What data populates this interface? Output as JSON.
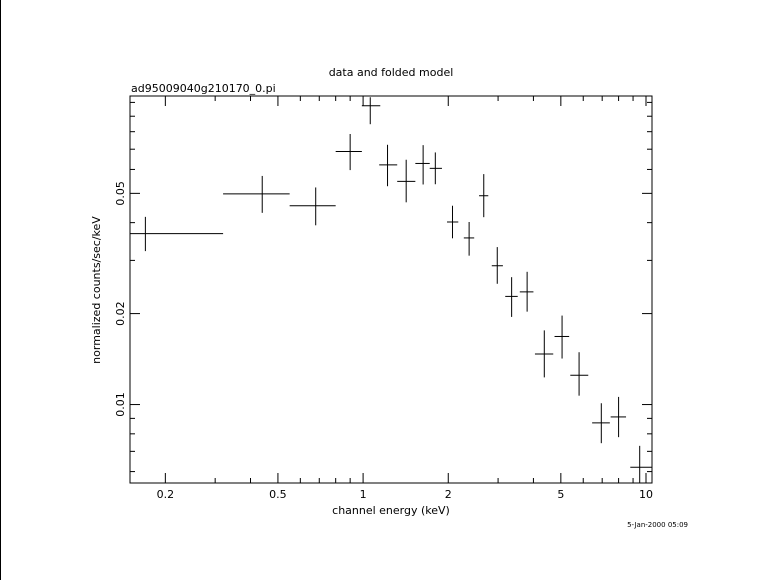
{
  "chart_data": {
    "type": "scatter",
    "title": "data and folded model",
    "subtitle": "ad95009040g210170_0.pi",
    "xlabel": "channel energy (keV)",
    "ylabel": "normalized counts/sec/keV",
    "timestamp": "5-Jan-2000 05:09",
    "x_scale": "log",
    "y_scale": "log",
    "xlim": [
      0.15,
      10.5
    ],
    "ylim": [
      0.0055,
      0.105
    ],
    "x_ticks": [
      {
        "value": 0.2,
        "label": "0.2"
      },
      {
        "value": 0.5,
        "label": "0.5"
      },
      {
        "value": 1,
        "label": "1"
      },
      {
        "value": 2,
        "label": "2"
      },
      {
        "value": 5,
        "label": "5"
      },
      {
        "value": 10,
        "label": "10"
      }
    ],
    "y_ticks": [
      {
        "value": 0.01,
        "label": "0.01"
      },
      {
        "value": 0.02,
        "label": "0.02"
      },
      {
        "value": 0.05,
        "label": "0.05"
      }
    ],
    "points": [
      {
        "x": 0.17,
        "x_lo": 0.15,
        "x_hi": 0.32,
        "y": 0.0368,
        "y_lo": 0.0322,
        "y_hi": 0.0418
      },
      {
        "x": 0.44,
        "x_lo": 0.32,
        "x_hi": 0.55,
        "y": 0.0498,
        "y_lo": 0.0431,
        "y_hi": 0.0571
      },
      {
        "x": 0.68,
        "x_lo": 0.55,
        "x_hi": 0.8,
        "y": 0.0455,
        "y_lo": 0.0392,
        "y_hi": 0.0523
      },
      {
        "x": 0.9,
        "x_lo": 0.8,
        "x_hi": 0.99,
        "y": 0.0688,
        "y_lo": 0.0597,
        "y_hi": 0.0786
      },
      {
        "x": 1.06,
        "x_lo": 0.99,
        "x_hi": 1.15,
        "y": 0.0975,
        "y_lo": 0.0847,
        "y_hi": 0.104
      },
      {
        "x": 1.22,
        "x_lo": 1.14,
        "x_hi": 1.32,
        "y": 0.0621,
        "y_lo": 0.0528,
        "y_hi": 0.0724
      },
      {
        "x": 1.42,
        "x_lo": 1.32,
        "x_hi": 1.53,
        "y": 0.0548,
        "y_lo": 0.0467,
        "y_hi": 0.0646
      },
      {
        "x": 1.63,
        "x_lo": 1.53,
        "x_hi": 1.72,
        "y": 0.0628,
        "y_lo": 0.0535,
        "y_hi": 0.0722
      },
      {
        "x": 1.8,
        "x_lo": 1.72,
        "x_hi": 1.9,
        "y": 0.0605,
        "y_lo": 0.0536,
        "y_hi": 0.0683
      },
      {
        "x": 2.07,
        "x_lo": 1.98,
        "x_hi": 2.17,
        "y": 0.0402,
        "y_lo": 0.0355,
        "y_hi": 0.0455
      },
      {
        "x": 2.37,
        "x_lo": 2.27,
        "x_hi": 2.47,
        "y": 0.0356,
        "y_lo": 0.0311,
        "y_hi": 0.0402
      },
      {
        "x": 2.67,
        "x_lo": 2.57,
        "x_hi": 2.77,
        "y": 0.0491,
        "y_lo": 0.0417,
        "y_hi": 0.0579
      },
      {
        "x": 2.98,
        "x_lo": 2.85,
        "x_hi": 3.12,
        "y": 0.0288,
        "y_lo": 0.0251,
        "y_hi": 0.0332
      },
      {
        "x": 3.35,
        "x_lo": 3.18,
        "x_hi": 3.52,
        "y": 0.0228,
        "y_lo": 0.0195,
        "y_hi": 0.0264
      },
      {
        "x": 3.8,
        "x_lo": 3.58,
        "x_hi": 4.0,
        "y": 0.0236,
        "y_lo": 0.0203,
        "y_hi": 0.0275
      },
      {
        "x": 4.37,
        "x_lo": 4.05,
        "x_hi": 4.7,
        "y": 0.0147,
        "y_lo": 0.0123,
        "y_hi": 0.0176
      },
      {
        "x": 5.05,
        "x_lo": 4.75,
        "x_hi": 5.35,
        "y": 0.0168,
        "y_lo": 0.0142,
        "y_hi": 0.0197
      },
      {
        "x": 5.8,
        "x_lo": 5.4,
        "x_hi": 6.25,
        "y": 0.0125,
        "y_lo": 0.0107,
        "y_hi": 0.0149
      },
      {
        "x": 6.95,
        "x_lo": 6.45,
        "x_hi": 7.45,
        "y": 0.0087,
        "y_lo": 0.00745,
        "y_hi": 0.0101
      },
      {
        "x": 8.0,
        "x_lo": 7.5,
        "x_hi": 8.5,
        "y": 0.0091,
        "y_lo": 0.0078,
        "y_hi": 0.0106
      },
      {
        "x": 9.5,
        "x_lo": 8.8,
        "x_hi": 10.5,
        "y": 0.0062,
        "y_lo": 0.0055,
        "y_hi": 0.0073
      }
    ]
  }
}
